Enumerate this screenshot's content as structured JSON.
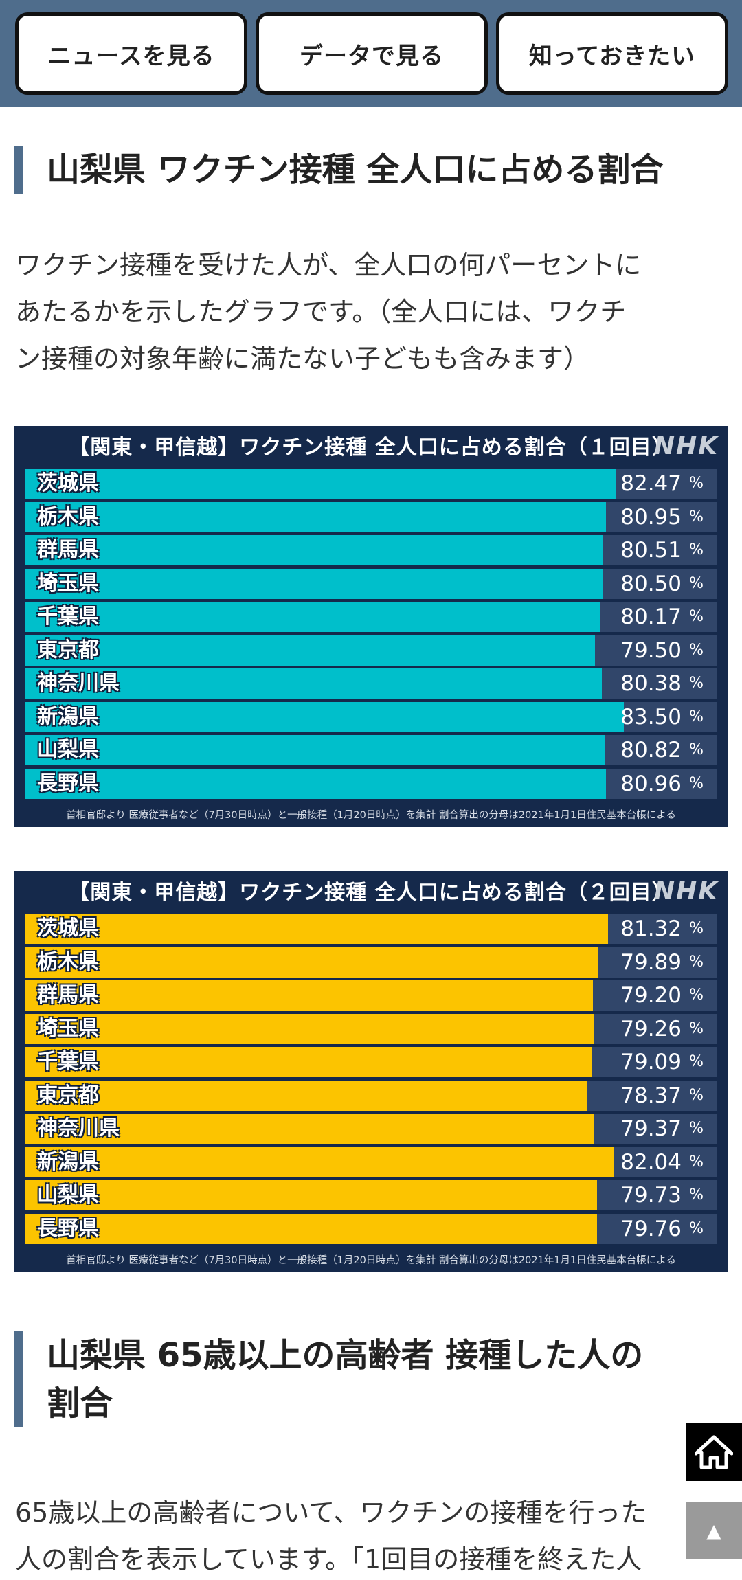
{
  "nav": {
    "news_label": "ニュースを見る",
    "data_label": "データで見る",
    "know_label": "知っておきたい"
  },
  "section1": {
    "heading": "山梨県 ワクチン接種 全人口に占める割合",
    "paragraph": [
      "ワクチン接種を受けた人が、全人口の何パーセントに",
      "あたるかを示したグラフです。（全人口には、ワクチ",
      "ン接種の対象年齢に満たない子どもも含みます）"
    ]
  },
  "charts_meta": {
    "logo": "NHK",
    "unit": "%",
    "source": "首相官邸より 医療従事者など（7月30日時点）と一般接種（1月20日時点）を集計 割合算出の分母は2021年1月1日住民基本台帳による"
  },
  "chart_data": [
    {
      "type": "bar",
      "title": "【関東・甲信越】ワクチン接種 全人口に占める割合（１回目）",
      "categories": [
        "茨城県",
        "栃木県",
        "群馬県",
        "埼玉県",
        "千葉県",
        "東京都",
        "神奈川県",
        "新潟県",
        "山梨県",
        "長野県"
      ],
      "values": [
        82.47,
        80.95,
        80.51,
        80.5,
        80.17,
        79.5,
        80.38,
        83.5,
        80.82,
        80.96
      ],
      "value_labels": [
        "82.47",
        "80.95",
        "80.51",
        "80.50",
        "80.17",
        "79.50",
        "80.38",
        "83.50",
        "80.82",
        "80.96"
      ],
      "bar_color": "#00bfcb"
    },
    {
      "type": "bar",
      "title": "【関東・甲信越】ワクチン接種 全人口に占める割合（２回目）",
      "categories": [
        "茨城県",
        "栃木県",
        "群馬県",
        "埼玉県",
        "千葉県",
        "東京都",
        "神奈川県",
        "新潟県",
        "山梨県",
        "長野県"
      ],
      "values": [
        81.32,
        79.89,
        79.2,
        79.26,
        79.09,
        78.37,
        79.37,
        82.04,
        79.73,
        79.76
      ],
      "value_labels": [
        "81.32",
        "79.89",
        "79.20",
        "79.26",
        "79.09",
        "78.37",
        "79.37",
        "82.04",
        "79.73",
        "79.76"
      ],
      "bar_color": "#fcc400"
    }
  ],
  "section2": {
    "heading_lines": [
      "山梨県 65歳以上の高齢者 接種した人の",
      "割合"
    ],
    "paragraph": [
      "65歳以上の高齢者について、ワクチンの接種を行った",
      "人の割合を表示しています。「1回目の接種を終えた人"
    ]
  },
  "floating": {
    "home_icon": "home-icon",
    "top_icon": "▲"
  },
  "colors": {
    "accent": "#4f6d8c",
    "chart_bg": "#15294b"
  }
}
